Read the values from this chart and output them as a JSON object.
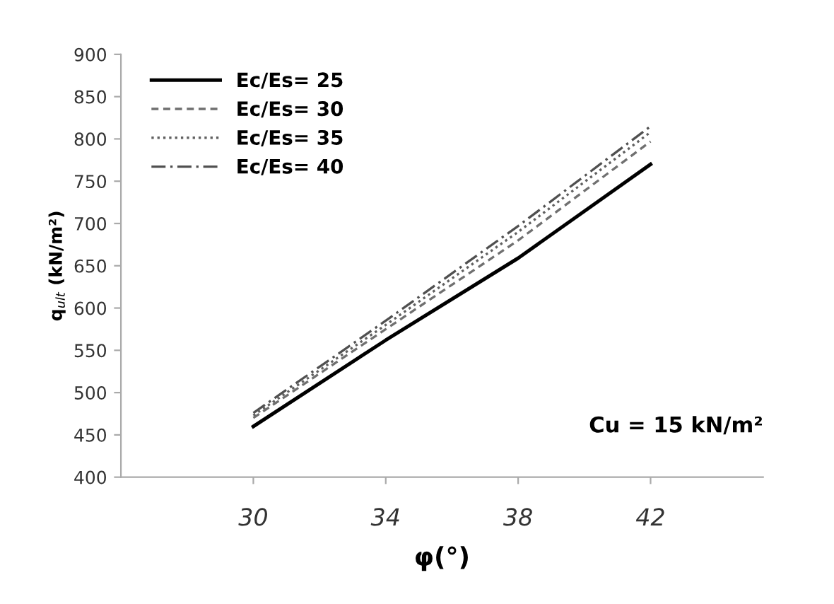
{
  "chart_data": {
    "type": "line",
    "xlabel": "φ(°)",
    "ylabel": "q$_{ult}$ (kN/m²)",
    "x": [
      30,
      34,
      38,
      42
    ],
    "xlim": [
      26,
      45.4
    ],
    "xticks": [
      30,
      34,
      38,
      42
    ],
    "ylim": [
      400,
      900
    ],
    "yticks": [
      400,
      450,
      500,
      550,
      600,
      650,
      700,
      750,
      800,
      850,
      900
    ],
    "grid": false,
    "legend": "top left",
    "marker": "none",
    "series": [
      {
        "name": "Ec/Es= 25",
        "color": "#000000",
        "line_style": "solid",
        "values": [
          460,
          562,
          659,
          770
        ]
      },
      {
        "name": "Ec/Es= 30",
        "color": "#707070",
        "line_style": "dashed",
        "values": [
          470,
          575,
          680,
          797
        ]
      },
      {
        "name": "Ec/Es= 35",
        "color": "#606060",
        "line_style": "dotted",
        "values": [
          473,
          580,
          690,
          808
        ]
      },
      {
        "name": "Ec/Es= 40",
        "color": "#505050",
        "line_style": "dashdot",
        "values": [
          476,
          585,
          697,
          815
        ]
      }
    ],
    "annotations": [
      "Cu = 15 kN/m²"
    ]
  }
}
